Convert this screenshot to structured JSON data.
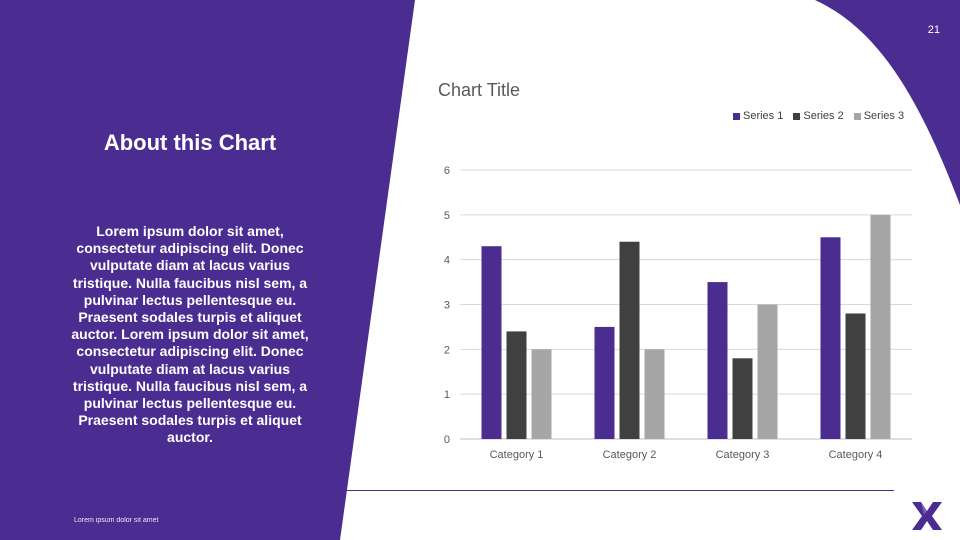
{
  "slide": {
    "page_number": "21",
    "left_title": "About this Chart",
    "left_body": "Lorem ipsum dolor sit amet, consectetur adipiscing elit. Donec vulputate diam at lacus varius tristique. Nulla faucibus nisl sem, a pulvinar lectus pellentesque eu. Praesent sodales turpis et aliquet auctor. Lorem ipsum dolor sit amet, consectetur adipiscing elit. Donec vulputate diam at lacus varius tristique. Nulla faucibus nisl sem, a pulvinar lectus pellentesque eu. Praesent sodales turpis et aliquet auctor.",
    "footer_text": "Lorem ipsum dolor sit amet",
    "logo_icon": "x-logo-icon"
  },
  "colors": {
    "brand_purple": "#4b2c91",
    "series_1": "#4b2c91",
    "series_2": "#404040",
    "series_3": "#a6a6a6"
  },
  "chart_data": {
    "type": "bar",
    "title": "Chart Title",
    "categories": [
      "Category 1",
      "Category 2",
      "Category 3",
      "Category 4"
    ],
    "series": [
      {
        "name": "Series 1",
        "values": [
          4.3,
          2.5,
          3.5,
          4.5
        ]
      },
      {
        "name": "Series 2",
        "values": [
          2.4,
          4.4,
          1.8,
          2.8
        ]
      },
      {
        "name": "Series 3",
        "values": [
          2,
          2,
          3,
          5
        ]
      }
    ],
    "ylim": [
      0,
      6
    ],
    "yticks": [
      "0",
      "1",
      "2",
      "3",
      "4",
      "5",
      "6"
    ],
    "grid": true,
    "legend_position": "top-right"
  }
}
